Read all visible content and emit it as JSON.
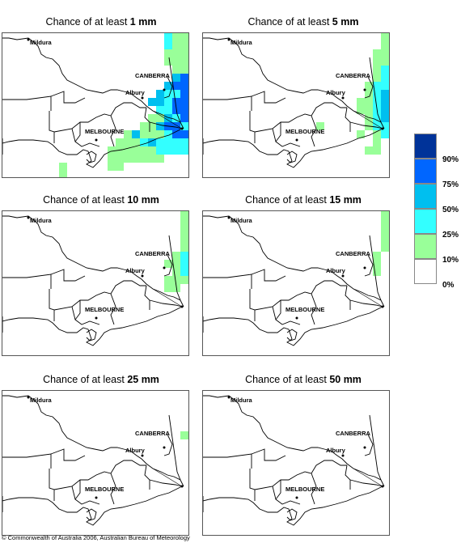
{
  "panels": [
    {
      "title_prefix": "Chance of at least ",
      "amount": "1 mm",
      "key": "p1"
    },
    {
      "title_prefix": "Chance of at least ",
      "amount": "5 mm",
      "key": "p5"
    },
    {
      "title_prefix": "Chance of at least ",
      "amount": "10 mm",
      "key": "p10"
    },
    {
      "title_prefix": "Chance of at least ",
      "amount": "15 mm",
      "key": "p15"
    },
    {
      "title_prefix": "Chance of at least ",
      "amount": "25 mm",
      "key": "p25"
    },
    {
      "title_prefix": "Chance of at least ",
      "amount": "50 mm",
      "key": "p50"
    }
  ],
  "map_labels": {
    "mildura": "Mildura",
    "canberra": "CANBERRA",
    "albury": "Albury",
    "melbourne": "MELBOURNE"
  },
  "legend": {
    "labels": [
      "90%",
      "75%",
      "50%",
      "25%",
      "10%",
      "0%"
    ],
    "colors": [
      "#003399",
      "#0066ff",
      "#00bfef",
      "#33ffff",
      "#99ff99",
      "#ffffff"
    ]
  },
  "copyright": "© Commonwealth of Australia 2006, Australian Bureau of Meteorology"
}
